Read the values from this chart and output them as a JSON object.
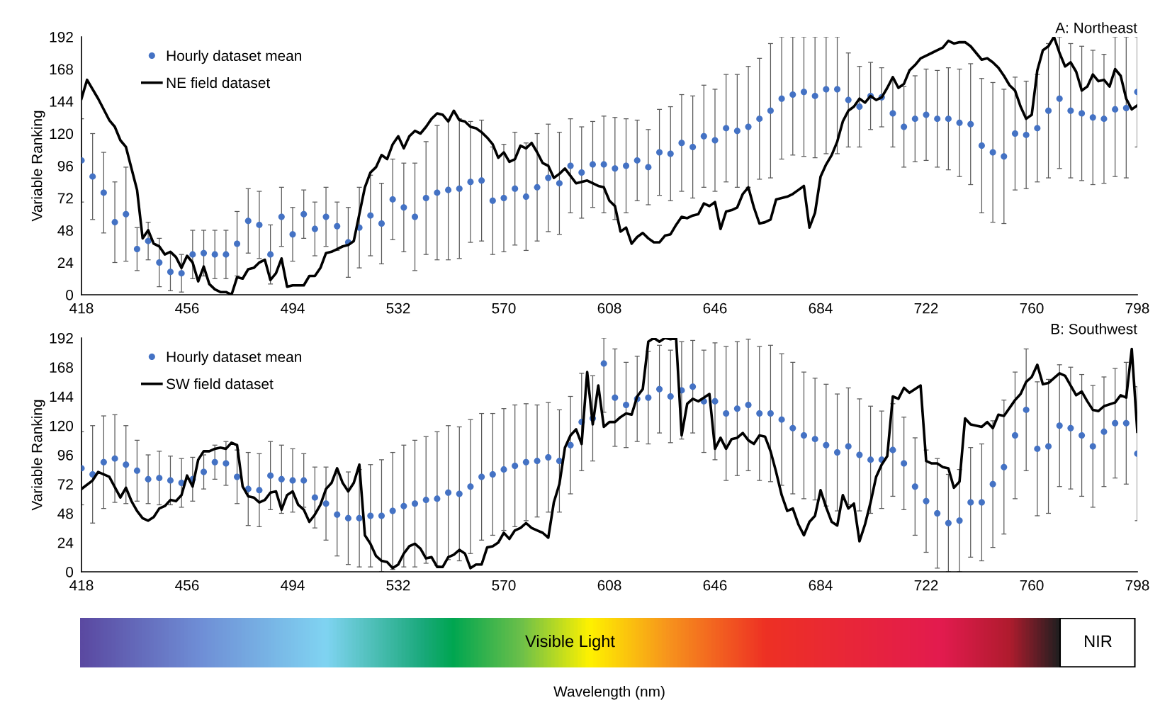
{
  "chart_data": [
    {
      "type": "scatter",
      "title": "A: Northeast",
      "ylabel": "Variable Ranking",
      "xlim": [
        418,
        798
      ],
      "xticks": [
        418,
        456,
        494,
        532,
        570,
        608,
        646,
        684,
        722,
        760,
        798
      ],
      "ylim": [
        0,
        192
      ],
      "yticks": [
        0,
        24,
        48,
        72,
        96,
        120,
        144,
        168,
        192
      ],
      "legend": "top left",
      "series": [
        {
          "name": "Hourly dataset mean",
          "marker": "circle",
          "color": "#4472c4",
          "x": [
            418,
            422,
            426,
            430,
            434,
            438,
            442,
            446,
            450,
            454,
            458,
            462,
            466,
            470,
            474,
            478,
            482,
            486,
            490,
            494,
            498,
            502,
            506,
            510,
            514,
            518,
            522,
            526,
            530,
            534,
            538,
            542,
            546,
            550,
            554,
            558,
            562,
            566,
            570,
            574,
            578,
            582,
            586,
            590,
            594,
            598,
            602,
            606,
            610,
            614,
            618,
            622,
            626,
            630,
            634,
            638,
            642,
            646,
            650,
            654,
            658,
            662,
            666,
            670,
            674,
            678,
            682,
            686,
            690,
            694,
            698,
            702,
            706,
            710,
            714,
            718,
            722,
            726,
            730,
            734,
            738,
            742,
            746,
            750,
            754,
            758,
            762,
            766,
            770,
            774,
            778,
            782,
            786,
            790,
            794,
            798
          ],
          "values": [
            100,
            88,
            76,
            54,
            60,
            34,
            40,
            24,
            17,
            16,
            30,
            31,
            30,
            30,
            38,
            55,
            52,
            30,
            58,
            45,
            60,
            49,
            58,
            51,
            39,
            50,
            59,
            53,
            71,
            65,
            58,
            72,
            76,
            78,
            79,
            84,
            85,
            70,
            72,
            79,
            73,
            80,
            87,
            83,
            96,
            91,
            97,
            97,
            94,
            96,
            100,
            95,
            106,
            105,
            113,
            110,
            118,
            115,
            124,
            122,
            125,
            131,
            137,
            146,
            149,
            151,
            148,
            153,
            153,
            145,
            140,
            148,
            147,
            135,
            125,
            131,
            134,
            131,
            131,
            128,
            127,
            111,
            106,
            103,
            120,
            119,
            124,
            137,
            146,
            137,
            135,
            132,
            131,
            138,
            139,
            151
          ],
          "errors": [
            31,
            32,
            30,
            30,
            35,
            16,
            14,
            18,
            14,
            14,
            18,
            17,
            18,
            18,
            24,
            24,
            25,
            22,
            22,
            20,
            18,
            20,
            22,
            18,
            26,
            30,
            30,
            30,
            30,
            33,
            40,
            42,
            50,
            52,
            52,
            45,
            45,
            40,
            40,
            42,
            40,
            40,
            40,
            38,
            35,
            34,
            32,
            36,
            38,
            35,
            30,
            28,
            32,
            35,
            36,
            38,
            38,
            38,
            40,
            42,
            45,
            45,
            50,
            [
              101,
              192
            ],
            [
              104,
              192
            ],
            [
              103,
              192
            ],
            [
              102,
              192
            ],
            [
              105,
              192
            ],
            [
              105,
              192
            ],
            35,
            30,
            25,
            22,
            25,
            30,
            32,
            34,
            36,
            38,
            40,
            45,
            50,
            52,
            50,
            42,
            40,
            40,
            50,
            [
              94,
              192
            ],
            50,
            50,
            50,
            48,
            [
              88,
              192
            ],
            [
              87,
              192
            ],
            41
          ]
        },
        {
          "name": "NE field dataset",
          "type": "line",
          "line_style": "solid",
          "color": "#000000",
          "x": [
            418,
            420,
            424,
            428,
            430,
            432,
            434,
            438,
            440,
            442,
            444,
            446,
            448,
            450,
            452,
            454,
            456,
            458,
            460,
            462,
            464,
            466,
            468,
            470,
            472,
            474,
            476,
            478,
            480,
            482,
            484,
            486,
            488,
            490,
            492,
            494,
            496,
            498,
            500,
            502,
            504,
            506,
            508,
            510,
            512,
            514,
            516,
            518,
            520,
            522,
            524,
            526,
            528,
            530,
            532,
            534,
            536,
            538,
            540,
            542,
            544,
            546,
            548,
            550,
            552,
            554,
            556,
            558,
            560,
            562,
            564,
            566,
            568,
            570,
            572,
            574,
            576,
            578,
            580,
            582,
            584,
            586,
            588,
            590,
            592,
            596,
            600,
            604,
            606,
            608,
            610,
            612,
            614,
            616,
            618,
            620,
            622,
            624,
            626,
            628,
            630,
            632,
            634,
            636,
            638,
            640,
            642,
            644,
            646,
            648,
            650,
            652,
            654,
            656,
            658,
            660,
            662,
            664,
            666,
            668,
            670,
            672,
            674,
            676,
            678,
            680,
            682,
            684,
            686,
            688,
            690,
            692,
            694,
            696,
            698,
            700,
            702,
            704,
            706,
            708,
            710,
            712,
            714,
            716,
            718,
            720,
            722,
            724,
            726,
            728,
            730,
            732,
            734,
            736,
            738,
            740,
            742,
            744,
            746,
            748,
            750,
            752,
            754,
            756,
            758,
            760,
            762,
            764,
            766,
            768,
            770,
            772,
            774,
            776,
            778,
            780,
            782,
            784,
            786,
            788,
            790,
            792,
            794,
            796,
            798
          ],
          "values": [
            146,
            160,
            146,
            130,
            125,
            115,
            110,
            78,
            42,
            48,
            38,
            36,
            30,
            32,
            28,
            20,
            29,
            24,
            10,
            21,
            8,
            4,
            2,
            2,
            0,
            13,
            12,
            19,
            20,
            24,
            26,
            11,
            16,
            27,
            6,
            7,
            7,
            7,
            14,
            14,
            20,
            31,
            32,
            34,
            36,
            37,
            40,
            60,
            80,
            91,
            95,
            104,
            101,
            112,
            118,
            109,
            118,
            122,
            120,
            125,
            131,
            135,
            134,
            129,
            137,
            130,
            129,
            125,
            124,
            121,
            117,
            112,
            102,
            106,
            99,
            101,
            111,
            109,
            113,
            106,
            98,
            96,
            87,
            90,
            94,
            83,
            85,
            81,
            80,
            70,
            66,
            47,
            50,
            38,
            43,
            46,
            42,
            39,
            39,
            44,
            45,
            52,
            58,
            57,
            59,
            60,
            68,
            66,
            69,
            49,
            62,
            63,
            65,
            75,
            80,
            65,
            53,
            54,
            56,
            71,
            72,
            73,
            75,
            78,
            81,
            50,
            61,
            88,
            97,
            104,
            114,
            129,
            137,
            140,
            146,
            143,
            148,
            145,
            147,
            154,
            162,
            154,
            157,
            167,
            171,
            176,
            178,
            180,
            182,
            184,
            189,
            187,
            188,
            188,
            185,
            180,
            175,
            176,
            173,
            169,
            163,
            156,
            152,
            140,
            131,
            134,
            167,
            182,
            185,
            192,
            180,
            170,
            173,
            166,
            152,
            155,
            164,
            159,
            160,
            155,
            168,
            163,
            146,
            138,
            141
          ]
        }
      ]
    },
    {
      "type": "scatter",
      "title": "B: Southwest",
      "xlabel": "Wavelength (nm)",
      "ylabel": "Variable Ranking",
      "xlim": [
        418,
        798
      ],
      "xticks": [
        418,
        456,
        494,
        532,
        570,
        608,
        646,
        684,
        722,
        760,
        798
      ],
      "ylim": [
        0,
        192
      ],
      "yticks": [
        0,
        24,
        48,
        72,
        96,
        120,
        144,
        168,
        192
      ],
      "legend": "top left",
      "annotations": [
        "Visible Light",
        "NIR"
      ],
      "series": [
        {
          "name": "Hourly dataset mean",
          "marker": "circle",
          "color": "#4472c4",
          "x": [
            418,
            422,
            426,
            430,
            434,
            438,
            442,
            446,
            450,
            454,
            458,
            462,
            466,
            470,
            474,
            478,
            482,
            486,
            490,
            494,
            498,
            502,
            506,
            510,
            514,
            518,
            522,
            526,
            530,
            534,
            538,
            542,
            546,
            550,
            554,
            558,
            562,
            566,
            570,
            574,
            578,
            582,
            586,
            590,
            594,
            598,
            602,
            606,
            610,
            614,
            618,
            622,
            626,
            630,
            634,
            638,
            642,
            646,
            650,
            654,
            658,
            662,
            666,
            670,
            674,
            678,
            682,
            686,
            690,
            694,
            698,
            702,
            706,
            710,
            714,
            718,
            722,
            726,
            730,
            734,
            738,
            742,
            746,
            750,
            754,
            758,
            762,
            766,
            770,
            774,
            778,
            782,
            786,
            790,
            794,
            798
          ],
          "values": [
            85,
            80,
            90,
            93,
            88,
            83,
            76,
            77,
            75,
            73,
            76,
            82,
            90,
            89,
            78,
            68,
            67,
            79,
            76,
            75,
            75,
            61,
            56,
            47,
            44,
            44,
            46,
            46,
            50,
            54,
            56,
            59,
            60,
            65,
            64,
            70,
            78,
            80,
            84,
            87,
            90,
            91,
            94,
            91,
            104,
            123,
            126,
            171,
            143,
            137,
            142,
            143,
            150,
            144,
            149,
            152,
            140,
            140,
            130,
            134,
            137,
            130,
            130,
            125,
            118,
            112,
            109,
            104,
            98,
            103,
            96,
            92,
            92,
            100,
            89,
            70,
            58,
            48,
            40,
            42,
            57,
            57,
            72,
            86,
            112,
            133,
            101,
            103,
            120,
            118,
            112,
            103,
            115,
            122,
            122,
            97
          ],
          "errors": [
            30,
            40,
            38,
            36,
            32,
            25,
            20,
            22,
            20,
            20,
            18,
            14,
            14,
            18,
            22,
            30,
            30,
            28,
            28,
            26,
            22,
            25,
            30,
            34,
            38,
            40,
            42,
            46,
            48,
            50,
            52,
            52,
            55,
            55,
            55,
            55,
            52,
            50,
            50,
            50,
            48,
            46,
            45,
            42,
            40,
            40,
            35,
            [
              131,
              192
            ],
            40,
            35,
            35,
            38,
            36,
            38,
            40,
            38,
            42,
            48,
            55,
            55,
            54,
            55,
            56,
            54,
            54,
            52,
            50,
            50,
            48,
            48,
            46,
            44,
            40,
            38,
            38,
            40,
            42,
            45,
            40,
            42,
            45,
            48,
            52,
            55,
            52,
            50,
            55,
            55,
            50,
            50,
            50,
            50,
            45,
            45,
            50,
            55
          ]
        },
        {
          "name": "SW field dataset",
          "type": "line",
          "line_style": "solid",
          "color": "#000000",
          "x": [
            418,
            422,
            424,
            428,
            432,
            434,
            436,
            438,
            440,
            442,
            444,
            446,
            448,
            450,
            452,
            454,
            456,
            458,
            460,
            462,
            464,
            466,
            468,
            470,
            472,
            474,
            476,
            478,
            480,
            482,
            484,
            486,
            488,
            490,
            492,
            494,
            496,
            498,
            500,
            502,
            504,
            506,
            508,
            510,
            512,
            514,
            516,
            518,
            520,
            522,
            524,
            526,
            528,
            530,
            532,
            534,
            536,
            538,
            540,
            542,
            544,
            546,
            548,
            550,
            552,
            554,
            556,
            558,
            560,
            562,
            564,
            566,
            568,
            570,
            572,
            574,
            576,
            578,
            580,
            582,
            584,
            586,
            588,
            590,
            592,
            594,
            596,
            598,
            600,
            602,
            604,
            606,
            608,
            610,
            612,
            614,
            616,
            618,
            620,
            622,
            624,
            626,
            628,
            630,
            632,
            634,
            636,
            638,
            640,
            642,
            644,
            646,
            648,
            650,
            652,
            654,
            656,
            658,
            660,
            662,
            664,
            666,
            668,
            670,
            672,
            674,
            676,
            678,
            680,
            682,
            684,
            686,
            688,
            690,
            692,
            694,
            696,
            698,
            700,
            702,
            704,
            706,
            708,
            710,
            712,
            714,
            716,
            720,
            722,
            724,
            726,
            728,
            730,
            732,
            734,
            736,
            738,
            742,
            744,
            746,
            748,
            750,
            754,
            756,
            758,
            760,
            762,
            764,
            766,
            768,
            770,
            772,
            776,
            778,
            780,
            782,
            784,
            786,
            790,
            792,
            794,
            796,
            798
          ],
          "values": [
            68,
            75,
            82,
            78,
            61,
            69,
            58,
            50,
            44,
            42,
            45,
            52,
            54,
            59,
            58,
            63,
            79,
            70,
            92,
            99,
            99,
            101,
            102,
            101,
            106,
            104,
            70,
            62,
            61,
            57,
            59,
            65,
            66,
            51,
            63,
            66,
            55,
            51,
            41,
            47,
            55,
            68,
            73,
            85,
            73,
            66,
            73,
            88,
            30,
            23,
            13,
            9,
            8,
            3,
            6,
            15,
            21,
            23,
            19,
            11,
            12,
            4,
            4,
            12,
            14,
            18,
            15,
            3,
            6,
            6,
            20,
            21,
            24,
            32,
            27,
            34,
            36,
            40,
            36,
            34,
            32,
            28,
            57,
            72,
            102,
            112,
            117,
            105,
            164,
            121,
            153,
            119,
            123,
            123,
            127,
            130,
            129,
            144,
            150,
            189,
            192,
            189,
            192,
            191,
            192,
            112,
            138,
            142,
            140,
            143,
            146,
            101,
            110,
            101,
            109,
            110,
            114,
            108,
            105,
            112,
            111,
            99,
            82,
            63,
            50,
            52,
            39,
            30,
            41,
            46,
            67,
            53,
            41,
            38,
            63,
            52,
            56,
            25,
            39,
            57,
            78,
            88,
            95,
            144,
            142,
            151,
            147,
            153,
            91,
            89,
            89,
            86,
            85,
            69,
            74,
            126,
            121,
            119,
            123,
            118,
            129,
            128,
            141,
            146,
            156,
            160,
            170,
            154,
            155,
            159,
            163,
            161,
            145,
            148,
            140,
            133,
            132,
            136,
            139,
            145,
            143,
            183,
            115
          ]
        }
      ]
    }
  ]
}
